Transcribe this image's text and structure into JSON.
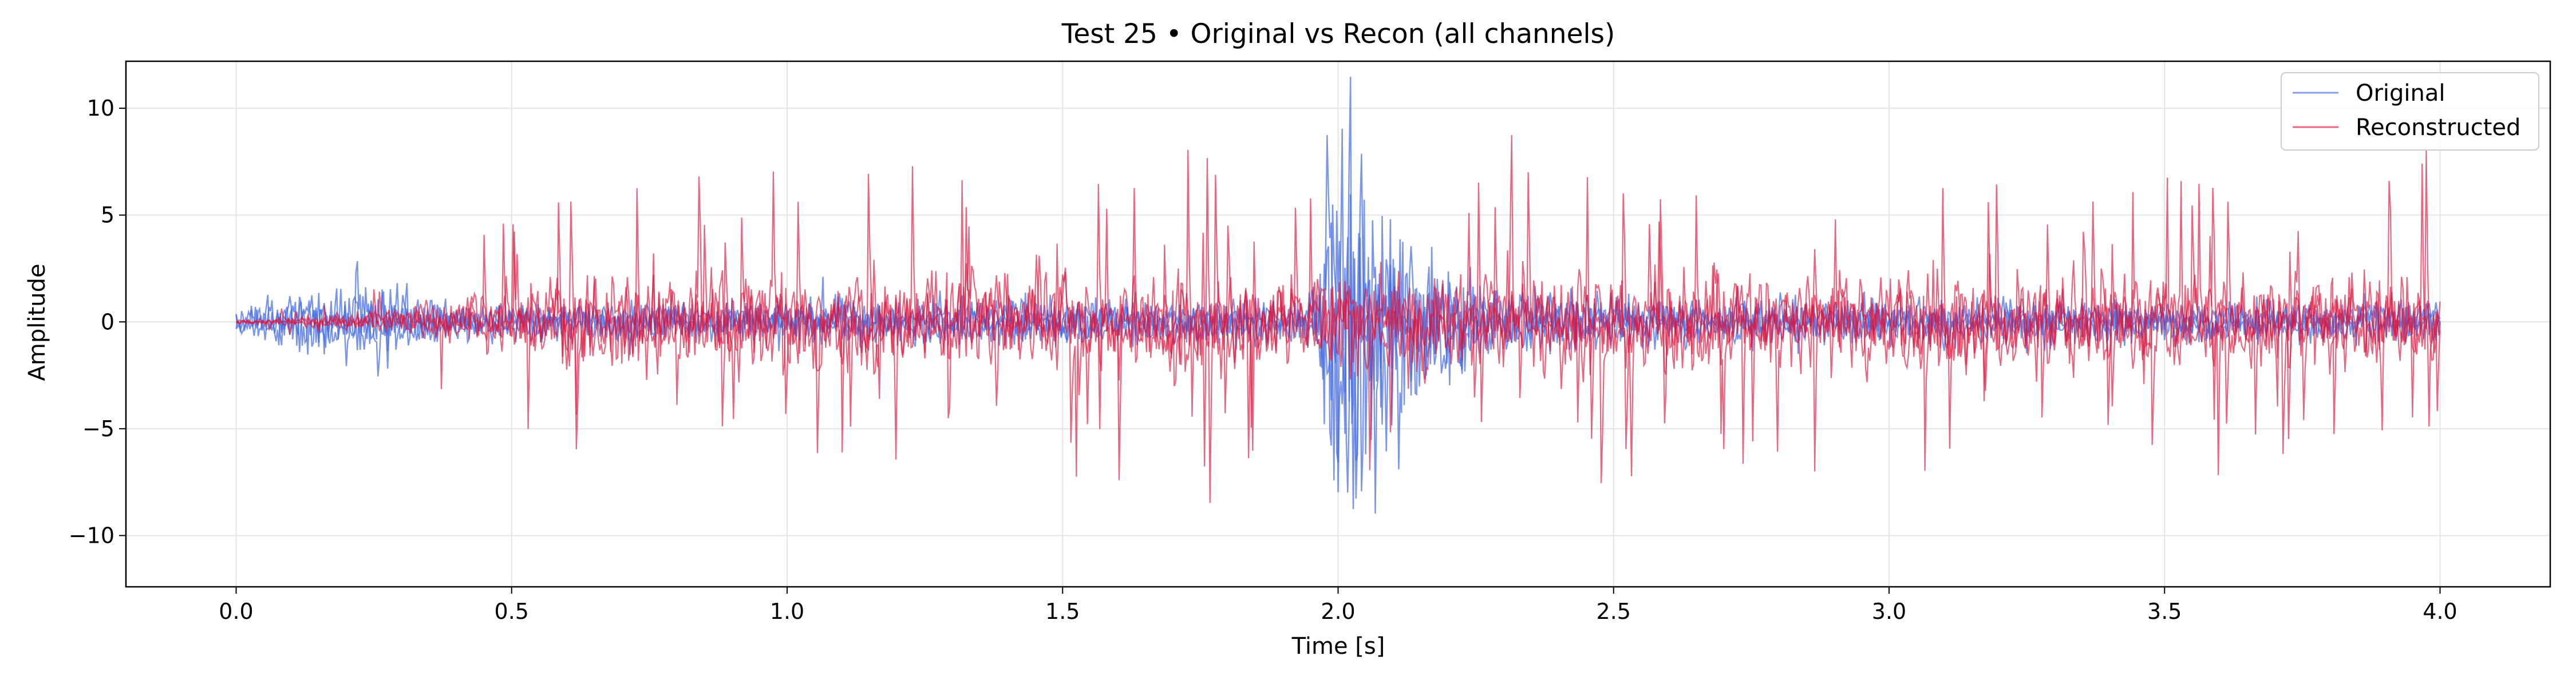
{
  "chart_data": {
    "type": "line",
    "title": "Test 25 • Original vs Recon (all channels)",
    "xlabel": "Time [s]",
    "ylabel": "Amplitude",
    "xlim": [
      -0.2,
      4.2
    ],
    "ylim": [
      -12.4,
      12.2
    ],
    "xticks": [
      0.0,
      0.5,
      1.0,
      1.5,
      2.0,
      2.5,
      3.0,
      3.5,
      4.0
    ],
    "xtick_labels": [
      "0.0",
      "0.5",
      "1.0",
      "1.5",
      "2.0",
      "2.5",
      "3.0",
      "3.5",
      "4.0"
    ],
    "yticks": [
      -10,
      -5,
      0,
      5,
      10
    ],
    "ytick_labels": [
      "−10",
      "−5",
      "0",
      "5",
      "10"
    ],
    "grid": true,
    "legend_position": "top-right",
    "series": [
      {
        "name": "Original",
        "color": "#4169e1",
        "envelope": [
          {
            "t": 0.0,
            "amp": 0.5
          },
          {
            "t": 0.1,
            "amp": 1.3
          },
          {
            "t": 0.25,
            "amp": 1.8
          },
          {
            "t": 0.4,
            "amp": 0.8
          },
          {
            "t": 1.0,
            "amp": 1.0
          },
          {
            "t": 1.95,
            "amp": 1.0
          },
          {
            "t": 1.98,
            "amp": 6.0
          },
          {
            "t": 2.0,
            "amp": 11.0
          },
          {
            "t": 2.05,
            "amp": 8.0
          },
          {
            "t": 2.15,
            "amp": 3.5
          },
          {
            "t": 2.3,
            "amp": 1.5
          },
          {
            "t": 2.6,
            "amp": 1.0
          },
          {
            "t": 4.0,
            "amp": 0.9
          }
        ]
      },
      {
        "name": "Reconstructed",
        "color": "#dc143c",
        "envelope": [
          {
            "t": 0.0,
            "amp": 0.1
          },
          {
            "t": 0.2,
            "amp": 0.4
          },
          {
            "t": 0.45,
            "amp": 1.5
          },
          {
            "t": 0.6,
            "amp": 2.5
          },
          {
            "t": 1.8,
            "amp": 2.6
          },
          {
            "t": 2.0,
            "amp": 2.4
          },
          {
            "t": 2.5,
            "amp": 2.6
          },
          {
            "t": 4.0,
            "amp": 2.6
          }
        ]
      }
    ]
  }
}
